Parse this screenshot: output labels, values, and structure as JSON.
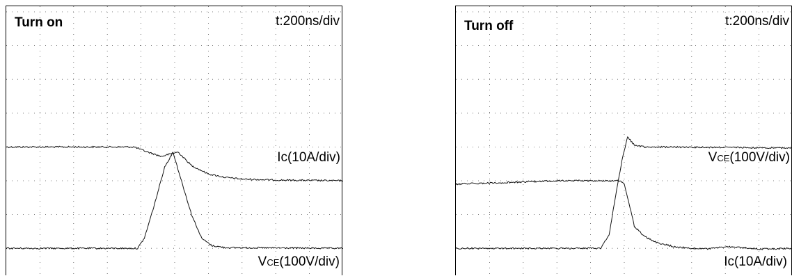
{
  "chart_data": [
    {
      "type": "line",
      "title": "Turn on",
      "timebase": "t:200ns/div",
      "grid": true,
      "divisions": {
        "x": 10,
        "y": 8
      },
      "series": [
        {
          "name": "Ic(10A/div)",
          "name_main": "Ic(10A/div)",
          "x": [
            0,
            3.8,
            4.2,
            4.6,
            4.9,
            5.1,
            5.5,
            6.0,
            6.5,
            7.0,
            8.0,
            10.0
          ],
          "y": [
            4.0,
            4.0,
            3.85,
            3.72,
            3.8,
            3.85,
            3.45,
            3.2,
            3.1,
            3.05,
            3.02,
            3.0
          ]
        },
        {
          "name": "VCE(100V/div)",
          "name_main": "V",
          "name_sub": "CE",
          "name_rest": "(100V/div)",
          "x": [
            0,
            3.9,
            4.1,
            4.4,
            4.7,
            4.95,
            5.2,
            5.5,
            5.8,
            6.1,
            6.5,
            10.0
          ],
          "y": [
            1.0,
            1.0,
            1.3,
            2.3,
            3.4,
            3.85,
            3.0,
            2.0,
            1.3,
            1.08,
            1.02,
            1.0
          ]
        }
      ]
    },
    {
      "type": "line",
      "title": "Turn off",
      "timebase": "t:200ns/div",
      "grid": true,
      "divisions": {
        "x": 10,
        "y": 8
      },
      "series": [
        {
          "name": "VCE(100V/div)",
          "name_main": "V",
          "name_sub": "CE",
          "name_rest": "(100V/div)",
          "x": [
            0,
            4.3,
            4.55,
            4.75,
            4.95,
            5.1,
            5.3,
            5.6,
            6.0,
            10.0
          ],
          "y": [
            1.0,
            1.0,
            1.4,
            2.6,
            3.7,
            4.3,
            4.05,
            4.0,
            4.0,
            3.97
          ]
        },
        {
          "name": "Ic(10A/div)",
          "name_main": "Ic(10A/div)",
          "x": [
            0,
            3.0,
            4.9,
            5.0,
            5.15,
            5.3,
            5.6,
            6.0,
            6.5,
            7.0,
            7.5,
            8.0,
            8.5,
            9.0,
            10.0
          ],
          "y": [
            2.9,
            3.0,
            3.0,
            2.9,
            2.3,
            1.65,
            1.35,
            1.15,
            1.05,
            1.0,
            0.98,
            1.05,
            1.02,
            0.98,
            1.0
          ]
        }
      ]
    }
  ]
}
